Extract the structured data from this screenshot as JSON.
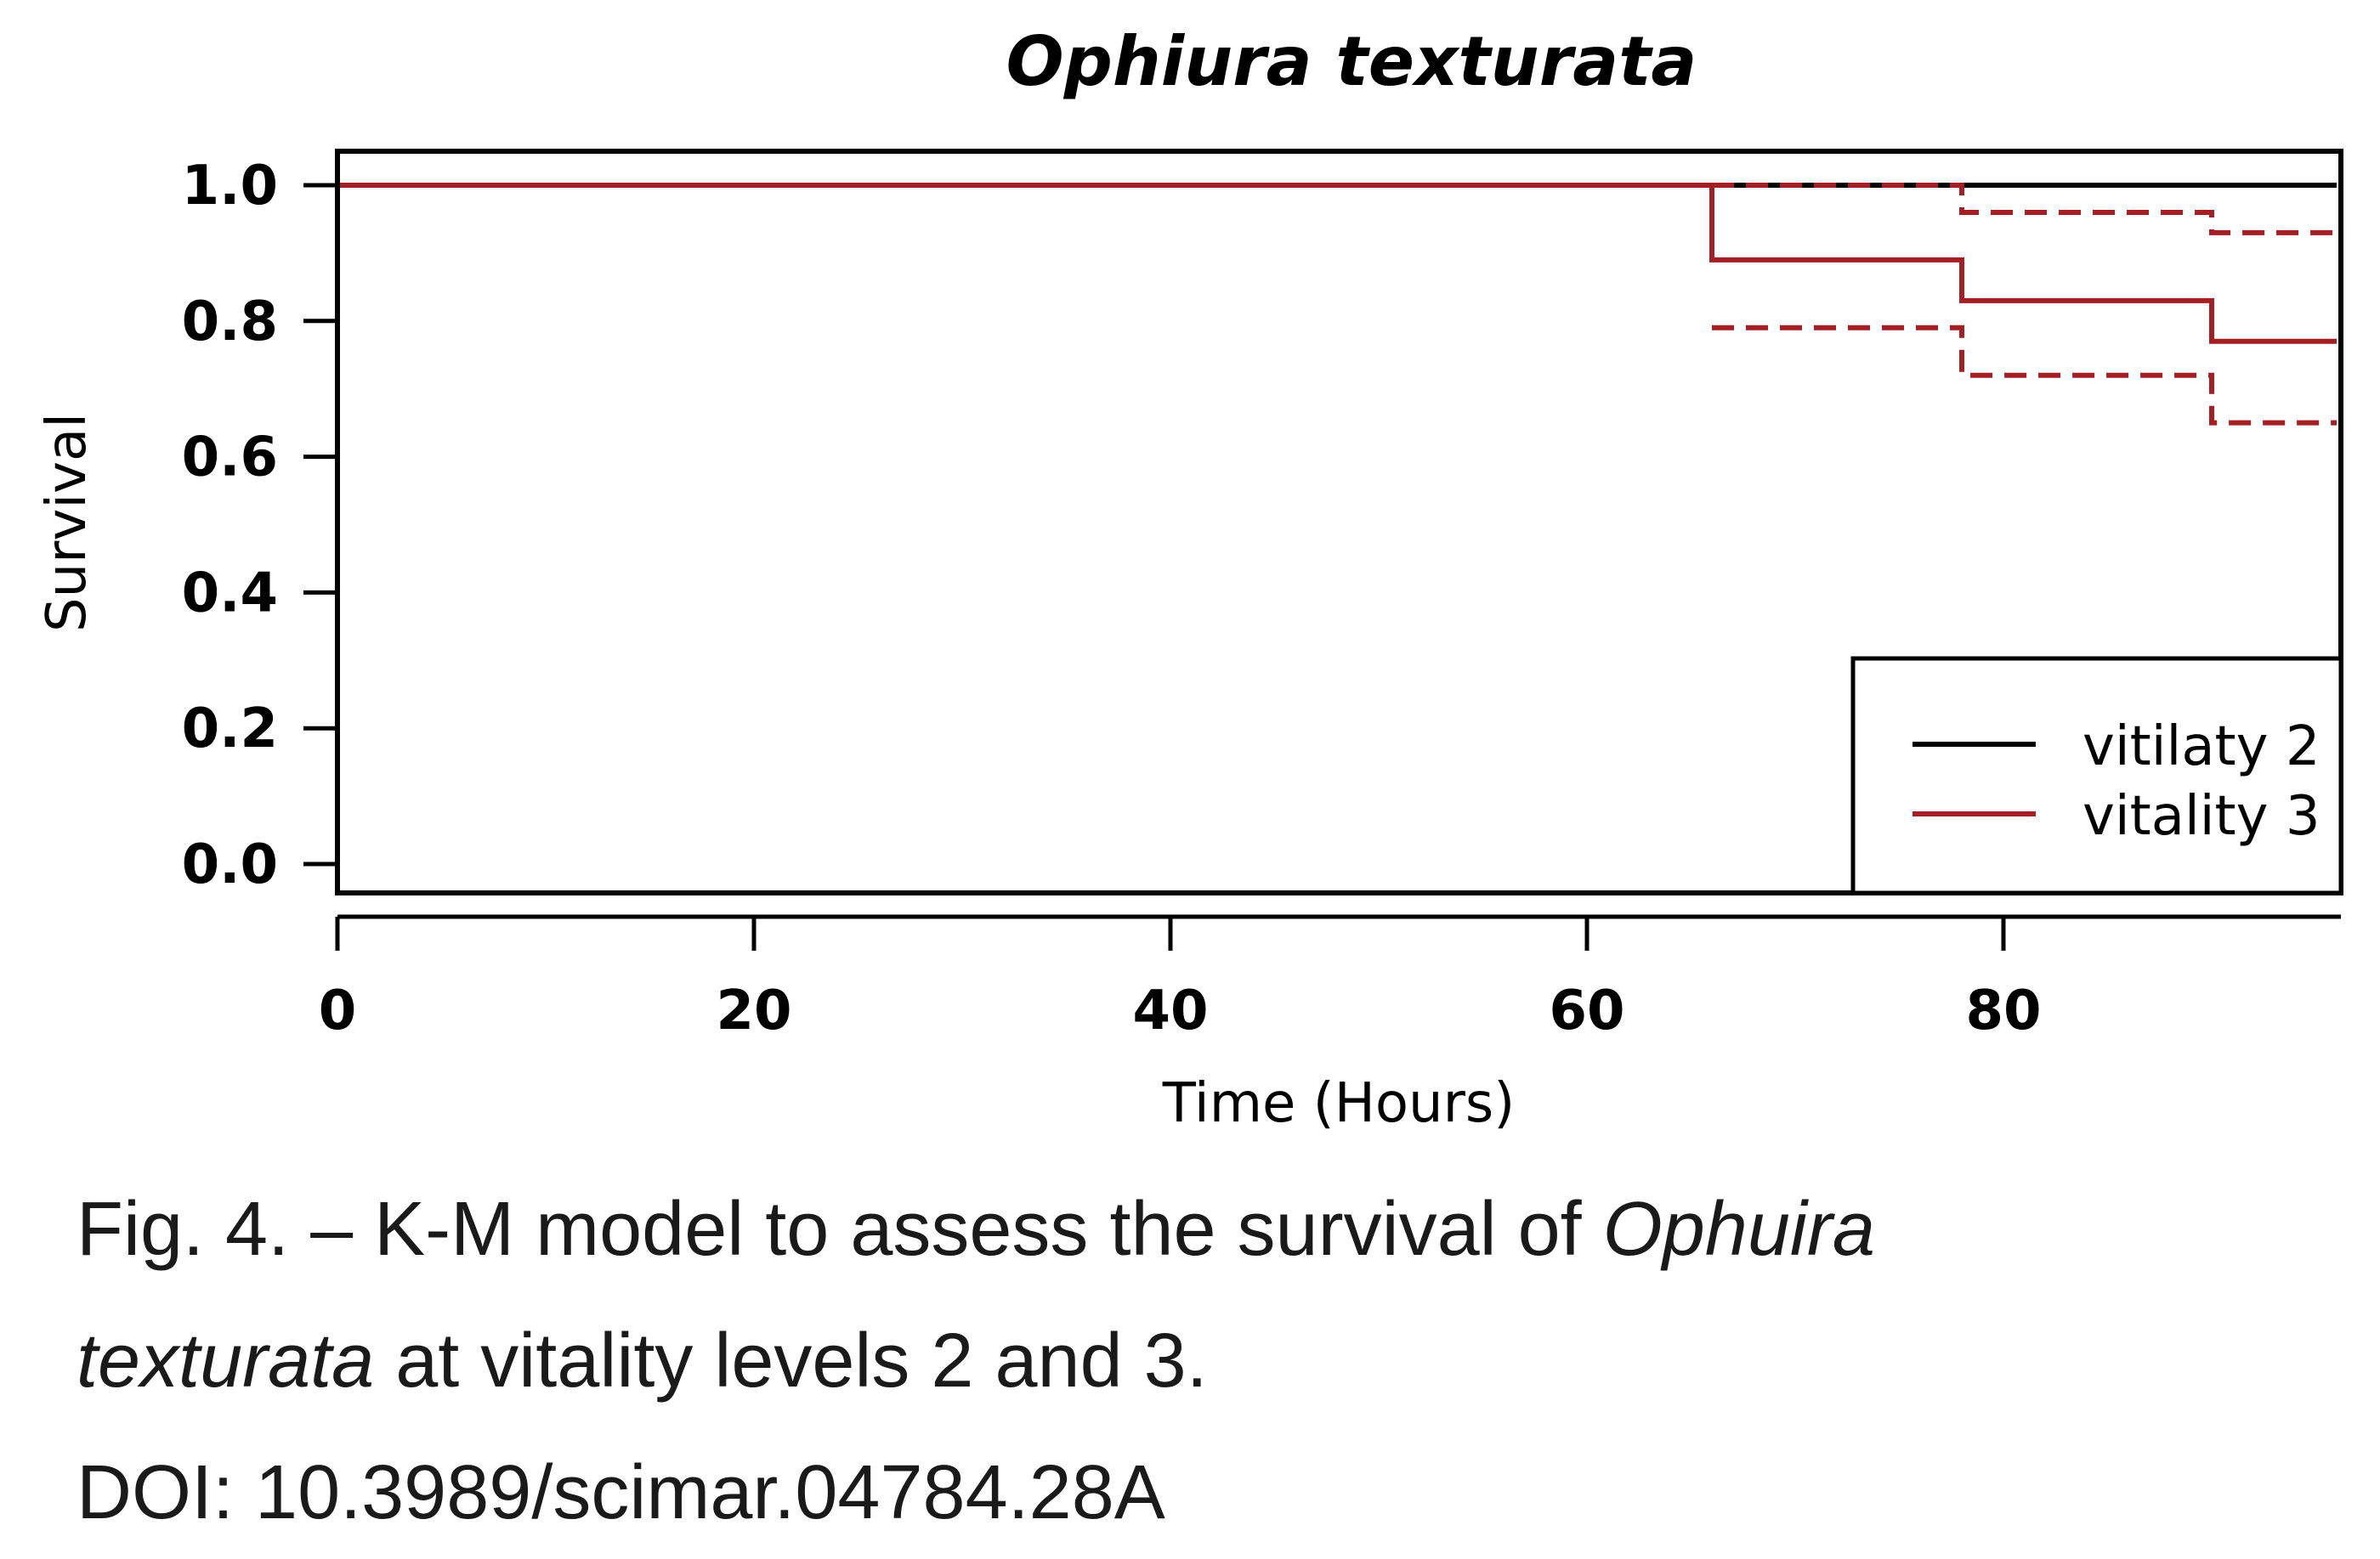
{
  "chart_data": {
    "type": "line",
    "subtype": "kaplan-meier-step",
    "title": "Ophiura texturata",
    "xlabel": "Time (Hours)",
    "ylabel": "Survival",
    "xlim": [
      0,
      96
    ],
    "ylim": [
      0.0,
      1.0
    ],
    "x_ticks": [
      0,
      20,
      40,
      60,
      80
    ],
    "x_tick_labels": [
      "0",
      "20",
      "40",
      "60",
      "80"
    ],
    "y_ticks": [
      0.0,
      0.2,
      0.4,
      0.6,
      0.8,
      1.0
    ],
    "y_tick_labels": [
      "0.0",
      "0.2",
      "0.4",
      "0.6",
      "0.8",
      "1.0"
    ],
    "grid": false,
    "legend_position": "bottom-right",
    "series": [
      {
        "name": "vitilaty 2",
        "color": "#000000",
        "style": "solid",
        "x": [
          0,
          96
        ],
        "y": [
          1.0,
          1.0
        ]
      },
      {
        "name": "vitality 3",
        "color": "#a31f24",
        "style": "solid",
        "x": [
          0,
          66,
          78,
          90,
          96
        ],
        "y": [
          1.0,
          0.89,
          0.83,
          0.77,
          0.77
        ]
      },
      {
        "role": "upper-ci",
        "color": "#a31f24",
        "style": "dashed",
        "x": [
          66,
          78,
          90,
          96
        ],
        "y": [
          1.0,
          0.96,
          0.93,
          0.93
        ]
      },
      {
        "role": "lower-ci",
        "color": "#a31f24",
        "style": "dashed",
        "x": [
          66,
          78,
          90,
          96
        ],
        "y": [
          0.79,
          0.72,
          0.65,
          0.65
        ]
      }
    ]
  },
  "caption": {
    "line1_prefix": "Fig. 4. – K-M model to assess the survival of ",
    "line1_italic": "Ophuira",
    "line2_italic": "texturata",
    "line2_suffix": " at vitality levels 2 and 3.",
    "line3": "DOI: 10.3989/scimar.04784.28A"
  }
}
